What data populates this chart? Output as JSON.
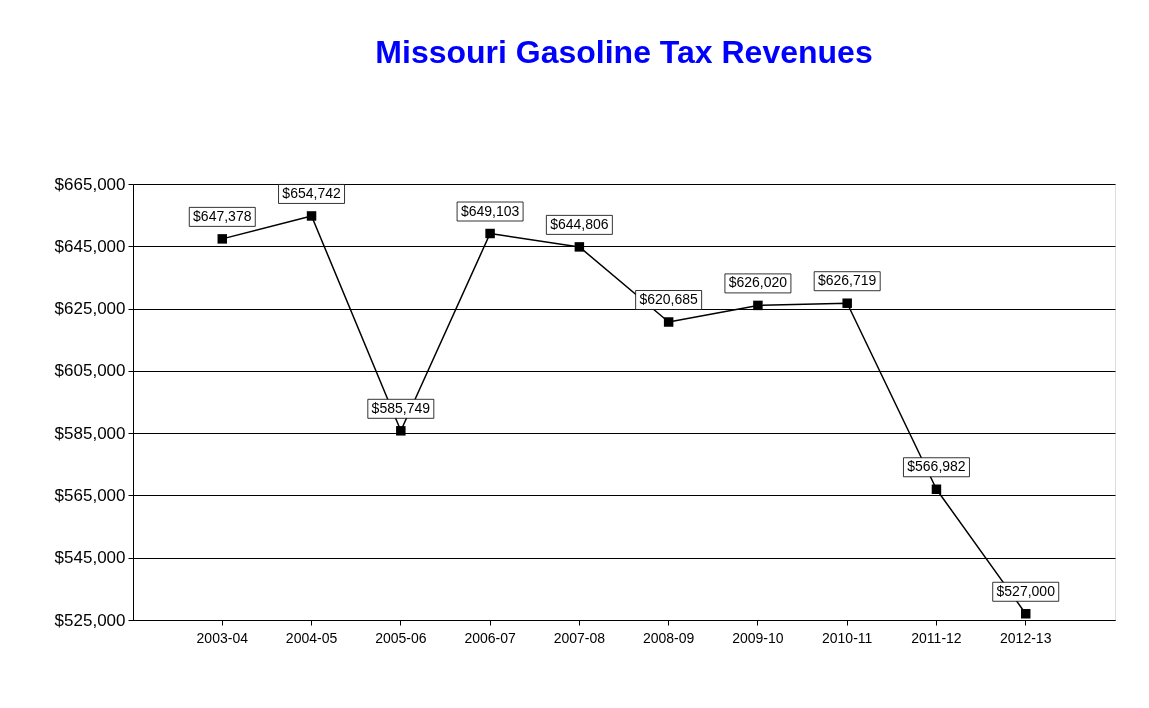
{
  "chart_data": {
    "type": "line",
    "title": "Missouri Gasoline Tax Revenues",
    "categories": [
      "2003-04",
      "2004-05",
      "2005-06",
      "2006-07",
      "2007-08",
      "2008-09",
      "2009-10",
      "2010-11",
      "2011-12",
      "2012-13"
    ],
    "series": [
      {
        "color": "#000000",
        "values": [
          647378,
          654742,
          585749,
          649103,
          644806,
          620685,
          626020,
          626719,
          566982,
          527000
        ]
      }
    ],
    "value_labels": [
      "$647,378",
      "$654,742",
      "$585,749",
      "$649,103",
      "$644,806",
      "$620,685",
      "$626,020",
      "$626,719",
      "$566,982",
      "$527,000"
    ],
    "ylim": [
      525000,
      665000
    ],
    "yticks": [
      {
        "value": 525000,
        "label": "$525,000"
      },
      {
        "value": 545000,
        "label": "$545,000"
      },
      {
        "value": 565000,
        "label": "$565,000"
      },
      {
        "value": 585000,
        "label": "$585,000"
      },
      {
        "value": 605000,
        "label": "$605,000"
      },
      {
        "value": 625000,
        "label": "$625,000"
      },
      {
        "value": 645000,
        "label": "$645,000"
      },
      {
        "value": 665000,
        "label": "$665,000"
      }
    ],
    "grid": "y",
    "marker": "square",
    "line_style": "solid"
  }
}
